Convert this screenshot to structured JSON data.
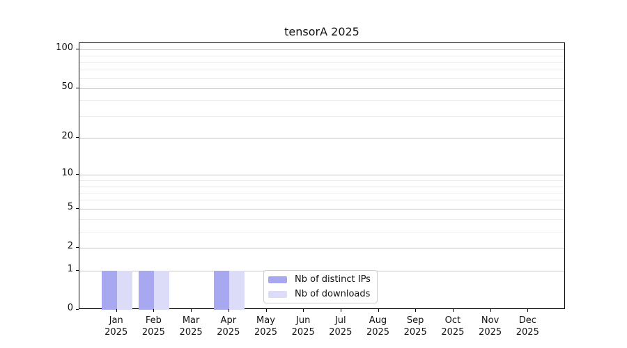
{
  "chart_data": {
    "type": "bar",
    "title": "tensorA 2025",
    "x_tick_months": [
      "Jan",
      "Feb",
      "Mar",
      "Apr",
      "May",
      "Jun",
      "Jul",
      "Aug",
      "Sep",
      "Oct",
      "Nov",
      "Dec"
    ],
    "x_tick_year": "2025",
    "series": [
      {
        "name": "Nb of distinct IPs",
        "color": "#a8a8f0",
        "values": [
          1,
          1,
          0,
          1,
          0,
          0,
          0,
          0,
          0,
          0,
          0,
          0
        ]
      },
      {
        "name": "Nb of downloads",
        "color": "#dcdcf8",
        "values": [
          1,
          1,
          0,
          1,
          0,
          0,
          0,
          0,
          0,
          0,
          0,
          0
        ]
      }
    ],
    "yscale": "log1p",
    "yticks": [
      0,
      1,
      2,
      5,
      10,
      20,
      50,
      100
    ],
    "minor_grid_values": [
      3,
      4,
      6,
      7,
      8,
      9,
      30,
      40,
      60,
      70,
      80,
      90
    ],
    "ylim": [
      0,
      112
    ],
    "grid": "horizontal",
    "legend_position": "lower center",
    "colors": {
      "major_grid": "#c6c6c6",
      "minor_grid": "#ececec",
      "axis": "#000000"
    }
  }
}
